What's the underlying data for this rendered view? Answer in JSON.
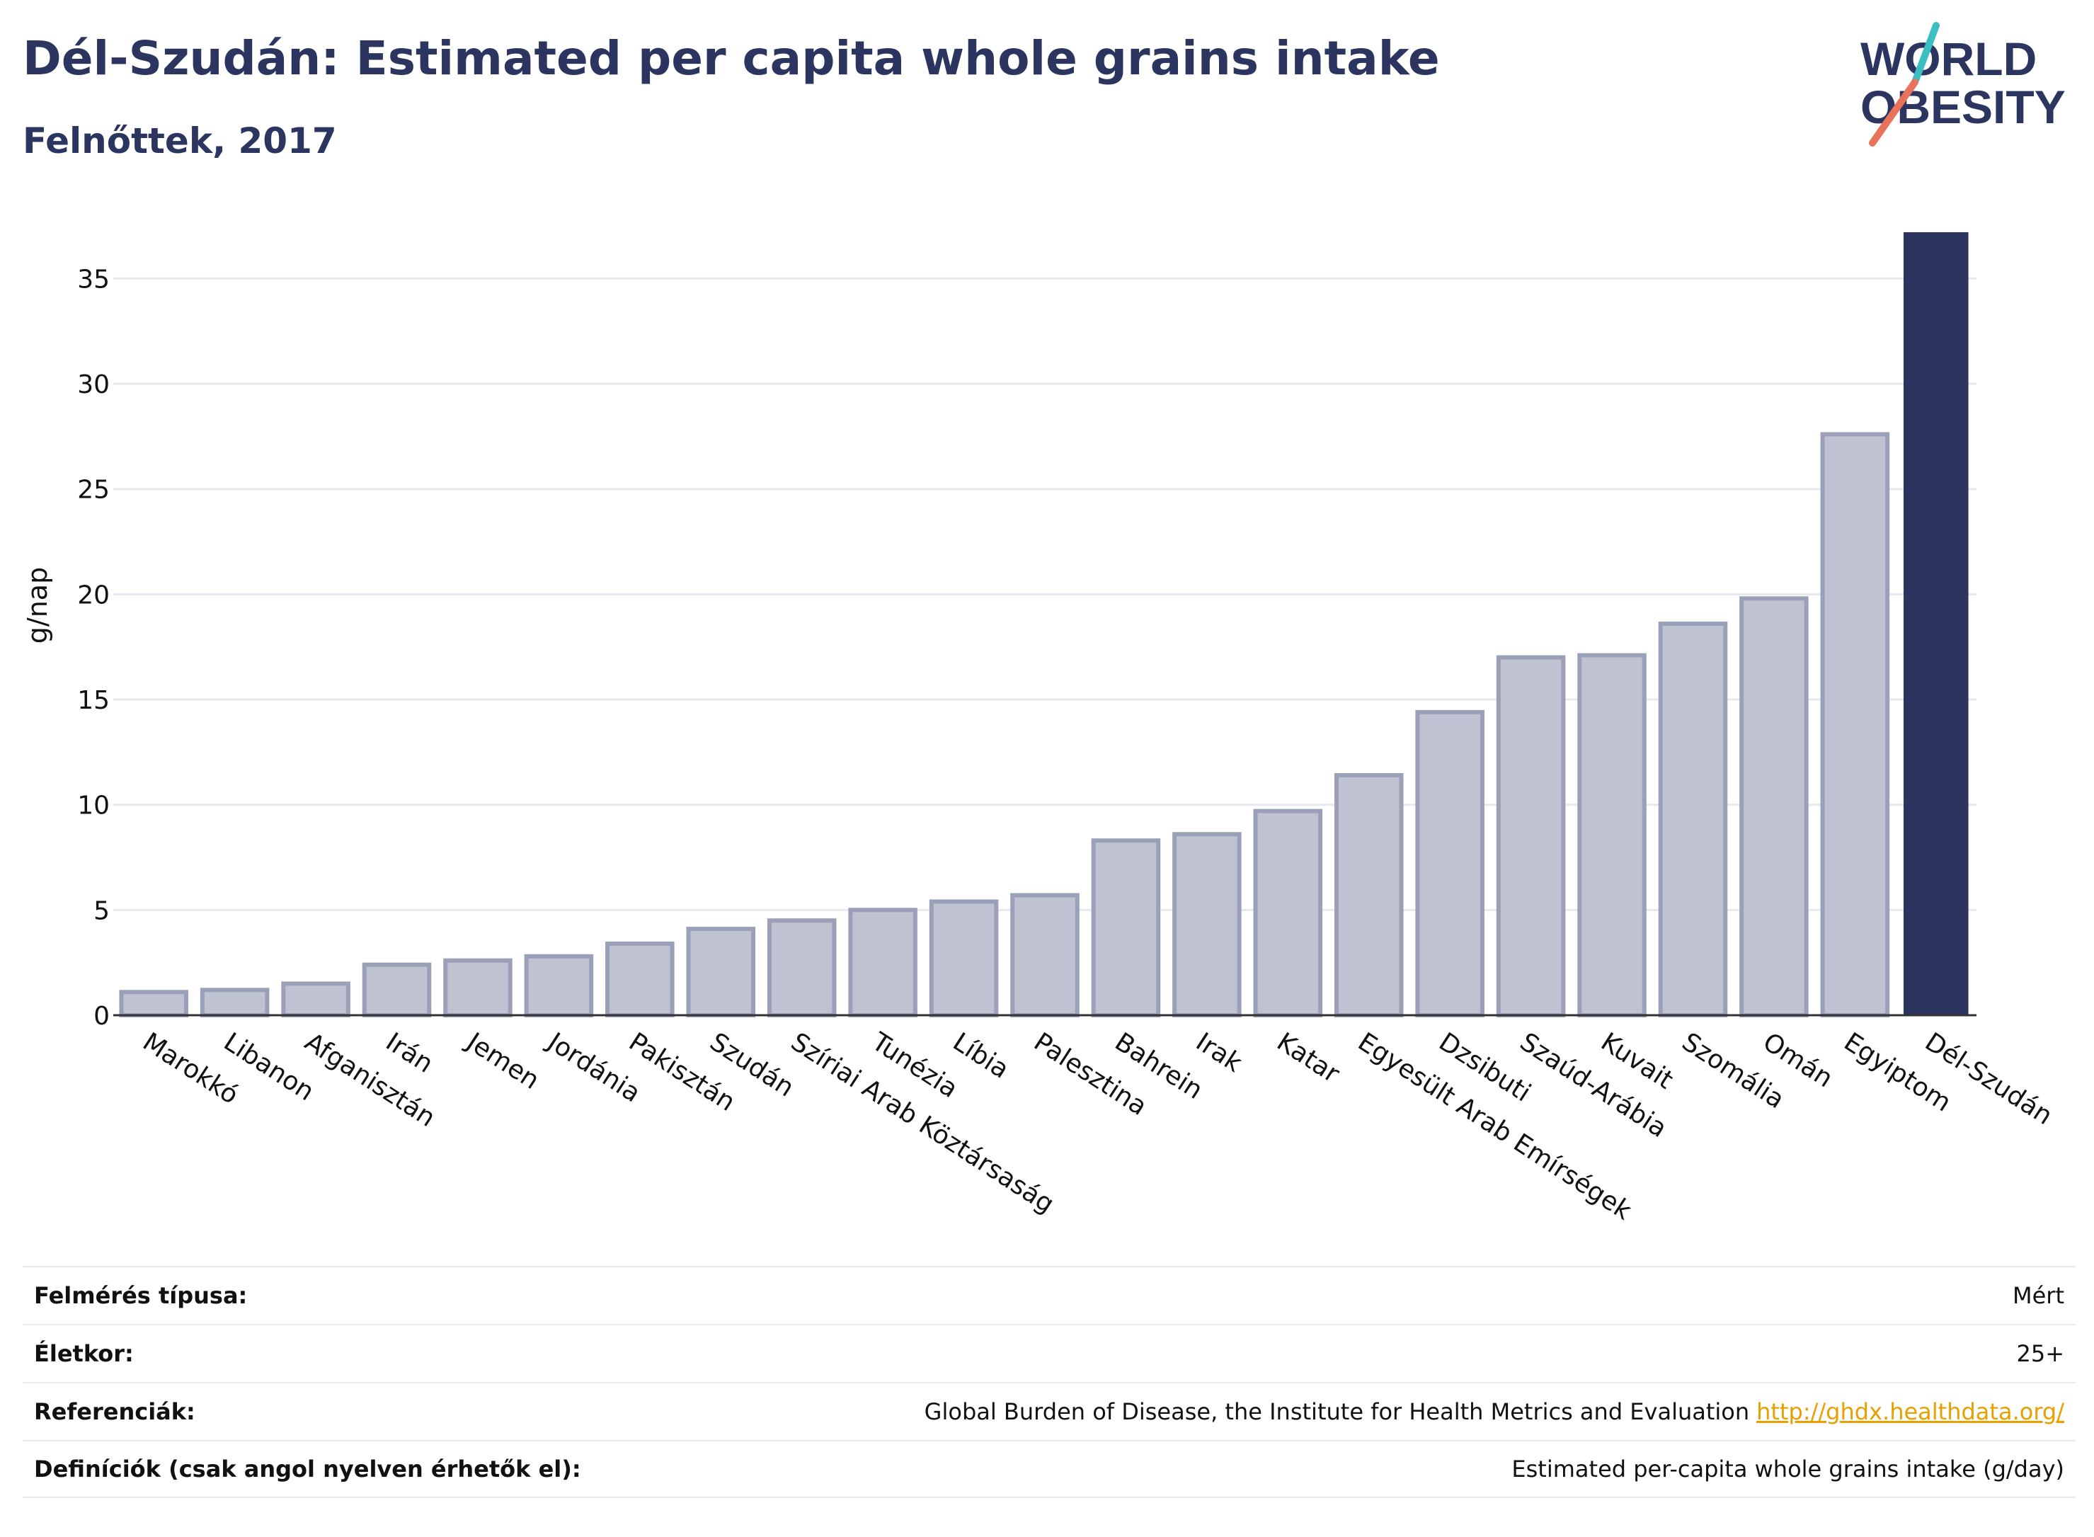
{
  "header": {
    "title": "Dél-Szudán: Estimated per capita whole grains intake",
    "subtitle": "Felnőttek, 2017"
  },
  "logo": {
    "line1": "WORLD",
    "line2": "OBESITY",
    "colors": {
      "text": "#2b3560",
      "slash_top": "#3cbfc0",
      "slash_bottom": "#e8735a"
    }
  },
  "colors": {
    "bar_default": "#bfc3d1",
    "bar_default_edge": "#9aa0b8",
    "bar_highlight": "#2b3560",
    "grid": "#e6e8ee",
    "axis_text": "#111111"
  },
  "chart_data": {
    "type": "bar",
    "title": "Dél-Szudán: Estimated per capita whole grains intake",
    "subtitle": "Felnőttek, 2017",
    "ylabel": "g/nap",
    "xlabel": "",
    "ylim": [
      0,
      37.2
    ],
    "yticks": [
      0,
      5,
      10,
      15,
      20,
      25,
      30,
      35
    ],
    "grid": true,
    "highlight": "Dél-Szudán",
    "categories": [
      "Marokkó",
      "Libanon",
      "Afganisztán",
      "Irán",
      "Jemen",
      "Jordánia",
      "Pakisztán",
      "Szudán",
      "Szíriai Arab Köztársaság",
      "Tunézia",
      "Líbia",
      "Palesztina",
      "Bahrein",
      "Irak",
      "Katar",
      "Egyesült Arab Emírségek",
      "Dzsibuti",
      "Szaúd-Arábia",
      "Kuvait",
      "Szomália",
      "Omán",
      "Egyiptom",
      "Dél-Szudán"
    ],
    "values": [
      1.1,
      1.2,
      1.5,
      2.4,
      2.6,
      2.8,
      3.4,
      4.1,
      4.5,
      5.0,
      5.4,
      5.7,
      8.3,
      8.6,
      9.7,
      11.4,
      14.4,
      17.0,
      17.1,
      18.6,
      19.8,
      27.6,
      37.2
    ]
  },
  "info": [
    {
      "key": "Felmérés típusa:",
      "value": "Mért"
    },
    {
      "key": "Életkor:",
      "value": "25+"
    },
    {
      "key": "Referenciák:",
      "value": "Global Burden of Disease, the Institute for Health Metrics and Evaluation",
      "link": "http://ghdx.healthdata.org/"
    },
    {
      "key": "Definíciók (csak angol nyelven érhetők el):",
      "value": "Estimated per-capita whole grains intake (g/day)"
    }
  ]
}
